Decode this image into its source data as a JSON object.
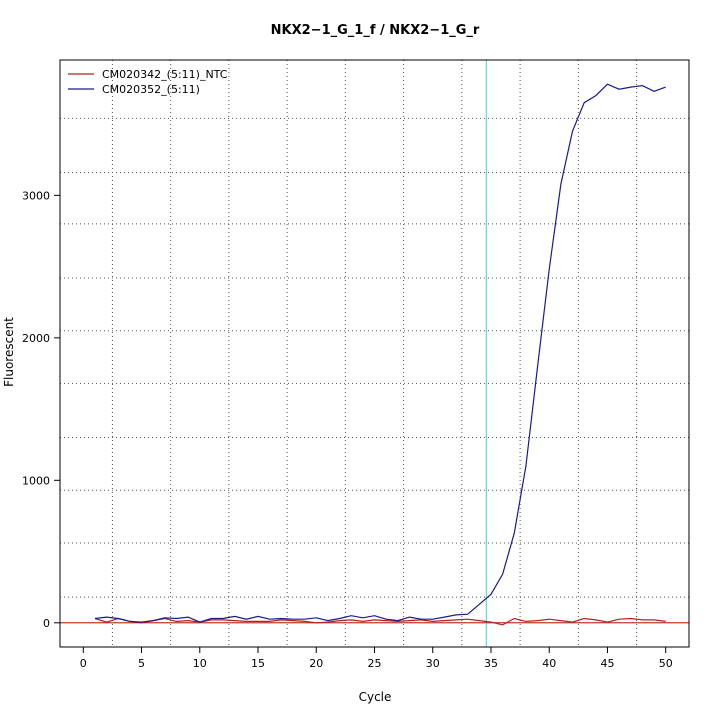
{
  "chart_data": {
    "type": "line",
    "title": "NKX2−1_G_1_f / NKX2−1_G_r",
    "xlabel": "Cycle",
    "ylabel": "Fluorescent",
    "xlim": [
      -2,
      52
    ],
    "ylim": [
      -170,
      3950
    ],
    "x_ticks": [
      0,
      5,
      10,
      15,
      20,
      25,
      30,
      35,
      40,
      45,
      50
    ],
    "y_ticks": [
      0,
      1000,
      2000,
      3000
    ],
    "x_grid": [
      2.5,
      7.5,
      12.5,
      17.5,
      22.5,
      27.5,
      32.5,
      37.5,
      42.5,
      47.5
    ],
    "y_grid": [
      180,
      560,
      930,
      1300,
      1680,
      2050,
      2420,
      2800,
      3160,
      3540
    ],
    "grid": true,
    "baseline_y": 0,
    "baseline_color": "#c0392b",
    "threshold_x": 34.6,
    "threshold_color": "#5fd7e6",
    "legend_position": "top-left",
    "series": [
      {
        "name": "CM020342_(5:11)_NTC",
        "color": "#b22222",
        "x": [
          1,
          2,
          3,
          4,
          5,
          6,
          7,
          8,
          9,
          10,
          11,
          12,
          13,
          14,
          15,
          16,
          17,
          18,
          19,
          20,
          21,
          22,
          23,
          24,
          25,
          26,
          27,
          28,
          29,
          30,
          31,
          32,
          33,
          34,
          35,
          36,
          37,
          38,
          39,
          40,
          41,
          42,
          43,
          44,
          45,
          46,
          47,
          48,
          49,
          50
        ],
        "values": [
          30,
          5,
          30,
          10,
          0,
          15,
          30,
          10,
          15,
          5,
          20,
          20,
          15,
          10,
          10,
          10,
          20,
          15,
          10,
          0,
          5,
          15,
          20,
          10,
          20,
          15,
          10,
          15,
          20,
          10,
          15,
          20,
          25,
          15,
          5,
          -15,
          30,
          10,
          15,
          25,
          15,
          5,
          30,
          20,
          5,
          25,
          30,
          20,
          20,
          10
        ]
      },
      {
        "name": "CM020352_(5:11)",
        "color": "#1a1a8c",
        "x": [
          1,
          2,
          3,
          4,
          5,
          6,
          7,
          8,
          9,
          10,
          11,
          12,
          13,
          14,
          15,
          16,
          17,
          18,
          19,
          20,
          21,
          22,
          23,
          24,
          25,
          26,
          27,
          28,
          29,
          30,
          31,
          32,
          33,
          34,
          35,
          36,
          37,
          38,
          39,
          40,
          41,
          42,
          43,
          44,
          45,
          46,
          47,
          48,
          49,
          50
        ],
        "values": [
          30,
          40,
          30,
          10,
          5,
          15,
          35,
          30,
          40,
          5,
          30,
          30,
          45,
          25,
          45,
          25,
          30,
          25,
          25,
          35,
          15,
          30,
          50,
          35,
          50,
          25,
          15,
          40,
          25,
          25,
          40,
          55,
          60,
          130,
          200,
          340,
          630,
          1100,
          1800,
          2480,
          3080,
          3450,
          3650,
          3700,
          3780,
          3745,
          3760,
          3770,
          3730,
          3760
        ]
      }
    ]
  }
}
